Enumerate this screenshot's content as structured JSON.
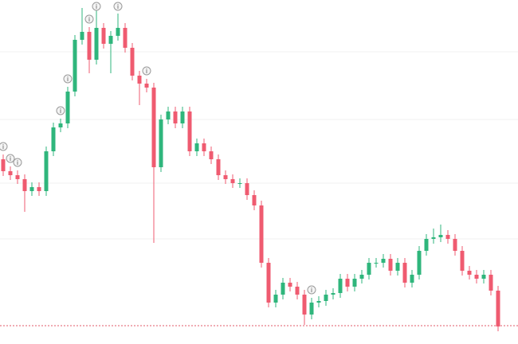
{
  "chart_data": {
    "type": "candlestick",
    "ylim": [
      0,
      432
    ],
    "grid": true,
    "grid_y": [
      367,
      282,
      202,
      132
    ],
    "up_color": "#2fb67c",
    "down_color": "#ef5b70",
    "open": [
      232,
      217,
      212,
      207,
      192,
      197,
      192,
      242,
      272,
      277,
      317,
      382,
      392,
      357,
      397,
      377,
      387,
      397,
      372,
      337,
      327,
      322,
      222,
      282,
      292,
      277,
      292,
      242,
      252,
      242,
      232,
      212,
      207,
      202,
      202,
      187,
      174,
      102,
      52,
      62,
      77,
      72,
      62,
      37,
      52,
      54,
      62,
      64,
      82,
      72,
      82,
      87,
      102,
      102,
      107,
      92,
      102,
      77,
      87,
      117,
      132,
      134,
      137,
      132,
      117,
      92,
      87,
      82,
      87,
      67
    ],
    "high": [
      238,
      223,
      218,
      213,
      203,
      203,
      248,
      278,
      283,
      323,
      388,
      422,
      398,
      420,
      403,
      393,
      415,
      403,
      378,
      343,
      333,
      328,
      288,
      298,
      298,
      298,
      298,
      258,
      258,
      248,
      238,
      218,
      213,
      208,
      208,
      193,
      180,
      108,
      68,
      83,
      83,
      78,
      68,
      58,
      60,
      68,
      70,
      88,
      88,
      88,
      93,
      108,
      108,
      113,
      113,
      108,
      108,
      93,
      123,
      138,
      145,
      150,
      143,
      138,
      123,
      98,
      93,
      93,
      93,
      73
    ],
    "low": [
      211,
      206,
      201,
      166,
      186,
      186,
      186,
      236,
      266,
      271,
      311,
      376,
      340,
      351,
      371,
      340,
      381,
      366,
      331,
      300,
      316,
      127,
      216,
      276,
      271,
      271,
      236,
      236,
      236,
      226,
      206,
      201,
      196,
      196,
      181,
      168,
      96,
      46,
      46,
      56,
      66,
      56,
      24,
      31,
      46,
      48,
      56,
      58,
      66,
      66,
      76,
      81,
      96,
      96,
      86,
      86,
      71,
      71,
      81,
      111,
      126,
      128,
      126,
      111,
      86,
      81,
      76,
      76,
      61,
      16
    ],
    "close": [
      217,
      212,
      207,
      192,
      197,
      192,
      242,
      272,
      277,
      317,
      382,
      392,
      357,
      397,
      377,
      387,
      397,
      372,
      337,
      327,
      322,
      222,
      282,
      292,
      277,
      292,
      242,
      252,
      242,
      232,
      212,
      207,
      202,
      202,
      187,
      174,
      102,
      52,
      62,
      77,
      72,
      62,
      37,
      52,
      54,
      62,
      64,
      82,
      72,
      82,
      87,
      102,
      102,
      107,
      92,
      102,
      77,
      87,
      117,
      132,
      134,
      137,
      132,
      117,
      92,
      87,
      82,
      87,
      67,
      22
    ],
    "annotations": [
      {
        "index": 0,
        "text": "i"
      },
      {
        "index": 1,
        "text": "i"
      },
      {
        "index": 2,
        "text": "i"
      },
      {
        "index": 8,
        "text": "i"
      },
      {
        "index": 9,
        "text": "i"
      },
      {
        "index": 12,
        "text": "i"
      },
      {
        "index": 13,
        "text": "i"
      },
      {
        "index": 16,
        "text": "i"
      },
      {
        "index": 20,
        "text": "i"
      },
      {
        "index": 43,
        "text": "i"
      }
    ],
    "hline": {
      "value": 23,
      "color": "#e05a6a"
    }
  }
}
